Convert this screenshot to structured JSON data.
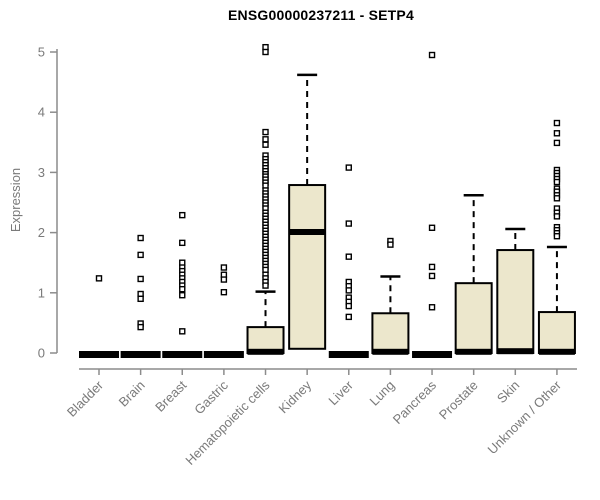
{
  "chart_data": {
    "type": "boxplot",
    "title": "ENSG00000237211 - SETP4",
    "ylabel": "Expression",
    "ylim": [
      0,
      5
    ],
    "yticks": [
      0,
      1,
      2,
      3,
      4,
      5
    ],
    "grid": false,
    "legend": "none",
    "box_fill": "#ECE7CC",
    "box_stroke": "#000000",
    "axis_color": "#8C8C8C",
    "label_color": "#7A7A7A",
    "categories": [
      "Bladder",
      "Brain",
      "Breast",
      "Gastric",
      "Hematopoietic cells",
      "Kidney",
      "Liver",
      "Lung",
      "Pancreas",
      "Prostate",
      "Skin",
      "Unknown / Other"
    ],
    "boxes": [
      {
        "category": "Bladder",
        "low": 0,
        "q1": 0,
        "median": 0,
        "q3": 0,
        "high": 0,
        "outliers": [
          1.24
        ]
      },
      {
        "category": "Brain",
        "low": 0,
        "q1": 0,
        "median": 0,
        "q3": 0,
        "high": 0,
        "outliers": [
          1.91,
          1.63,
          1.23,
          0.98,
          0.9,
          0.49,
          0.43
        ]
      },
      {
        "category": "Breast",
        "low": 0,
        "q1": 0,
        "median": 0,
        "q3": 0,
        "high": 0,
        "outliers": [
          2.29,
          1.83,
          1.5,
          1.42,
          1.36,
          1.3,
          1.24,
          1.18,
          1.12,
          1.06,
          0.96,
          0.36
        ]
      },
      {
        "category": "Gastric",
        "low": 0,
        "q1": 0,
        "median": 0,
        "q3": 0,
        "high": 0,
        "outliers": [
          1.42,
          1.3,
          1.22,
          1.01
        ]
      },
      {
        "category": "Hematopoietic cells",
        "low": 0,
        "q1": 0,
        "median": 0.02,
        "q3": 0.43,
        "high": 1.02,
        "outliers": [
          5.08,
          5.0,
          3.67,
          3.55,
          3.46,
          3.28,
          3.22,
          3.17,
          3.12,
          3.07,
          3.02,
          2.97,
          2.93,
          2.88,
          2.83,
          2.78,
          2.7,
          2.65,
          2.6,
          2.55,
          2.5,
          2.45,
          2.4,
          2.33,
          2.28,
          2.23,
          2.18,
          2.13,
          2.08,
          2.03,
          1.98,
          1.93,
          1.88,
          1.83,
          1.78,
          1.73,
          1.68,
          1.63,
          1.58,
          1.53,
          1.48,
          1.43,
          1.38,
          1.3,
          1.24,
          1.18,
          1.12
        ]
      },
      {
        "category": "Kidney",
        "low": 0.02,
        "q1": 0.07,
        "median": 2.01,
        "q3": 2.79,
        "high": 4.62,
        "outliers": []
      },
      {
        "category": "Liver",
        "low": 0,
        "q1": 0,
        "median": 0,
        "q3": 0,
        "high": 0,
        "outliers": [
          3.08,
          2.15,
          1.6,
          1.18,
          1.11,
          1.04,
          0.92,
          0.85,
          0.78,
          0.6
        ]
      },
      {
        "category": "Lung",
        "low": 0,
        "q1": 0,
        "median": 0.02,
        "q3": 0.66,
        "high": 1.27,
        "outliers": [
          1.86,
          1.8
        ]
      },
      {
        "category": "Pancreas",
        "low": 0,
        "q1": 0,
        "median": 0,
        "q3": 0,
        "high": 0,
        "outliers": [
          4.95,
          2.08,
          1.43,
          1.28,
          0.76
        ]
      },
      {
        "category": "Prostate",
        "low": 0,
        "q1": 0,
        "median": 0.02,
        "q3": 1.16,
        "high": 2.62,
        "outliers": []
      },
      {
        "category": "Skin",
        "low": 0,
        "q1": 0,
        "median": 0.03,
        "q3": 1.71,
        "high": 2.06,
        "outliers": []
      },
      {
        "category": "Unknown / Other",
        "low": 0,
        "q1": 0,
        "median": 0.02,
        "q3": 0.68,
        "high": 1.76,
        "outliers": [
          3.82,
          3.65,
          3.49,
          3.04,
          2.99,
          2.94,
          2.89,
          2.84,
          2.73,
          2.68,
          2.62,
          2.57,
          2.4,
          2.33,
          2.27,
          2.09,
          2.04,
          1.99,
          1.94
        ]
      }
    ]
  }
}
